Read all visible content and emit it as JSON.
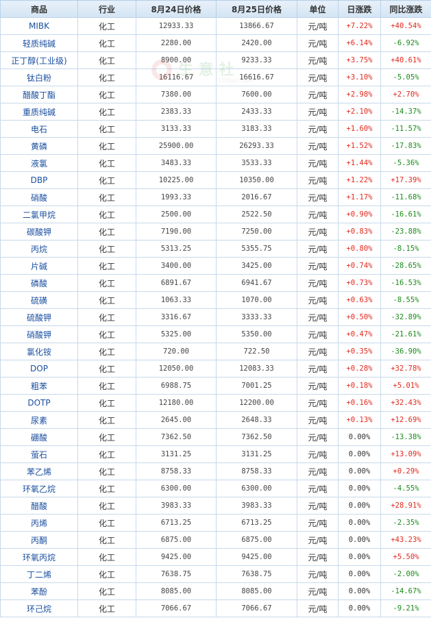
{
  "headers": [
    "商品",
    "行业",
    "8月24日价格",
    "8月25日价格",
    "单位",
    "日涨跌",
    "同比涨跌"
  ],
  "watermark": {
    "logo_text": "生 意 社",
    "url_text": "100ppi.com"
  },
  "colors": {
    "up": "#e0281d",
    "down": "#1a8a1a",
    "name": "#1a4fa0",
    "header_bg": "#dceaf6",
    "border": "#c7d9ea"
  },
  "rows": [
    {
      "name": "MIBK",
      "industry": "化工",
      "p1": "12933.33",
      "p2": "13866.67",
      "unit": "元/吨",
      "day": "+7.22%",
      "yoy": "+40.54%"
    },
    {
      "name": "轻质纯碱",
      "industry": "化工",
      "p1": "2280.00",
      "p2": "2420.00",
      "unit": "元/吨",
      "day": "+6.14%",
      "yoy": "-6.92%"
    },
    {
      "name": "正丁醇(工业级)",
      "industry": "化工",
      "p1": "8900.00",
      "p2": "9233.33",
      "unit": "元/吨",
      "day": "+3.75%",
      "yoy": "+40.61%"
    },
    {
      "name": "钛白粉",
      "industry": "化工",
      "p1": "16116.67",
      "p2": "16616.67",
      "unit": "元/吨",
      "day": "+3.10%",
      "yoy": "-5.05%"
    },
    {
      "name": "醋酸丁酯",
      "industry": "化工",
      "p1": "7380.00",
      "p2": "7600.00",
      "unit": "元/吨",
      "day": "+2.98%",
      "yoy": "+2.70%"
    },
    {
      "name": "重质纯碱",
      "industry": "化工",
      "p1": "2383.33",
      "p2": "2433.33",
      "unit": "元/吨",
      "day": "+2.10%",
      "yoy": "-14.37%"
    },
    {
      "name": "电石",
      "industry": "化工",
      "p1": "3133.33",
      "p2": "3183.33",
      "unit": "元/吨",
      "day": "+1.60%",
      "yoy": "-11.57%"
    },
    {
      "name": "黄磷",
      "industry": "化工",
      "p1": "25900.00",
      "p2": "26293.33",
      "unit": "元/吨",
      "day": "+1.52%",
      "yoy": "-17.83%"
    },
    {
      "name": "液氯",
      "industry": "化工",
      "p1": "3483.33",
      "p2": "3533.33",
      "unit": "元/吨",
      "day": "+1.44%",
      "yoy": "-5.36%"
    },
    {
      "name": "DBP",
      "industry": "化工",
      "p1": "10225.00",
      "p2": "10350.00",
      "unit": "元/吨",
      "day": "+1.22%",
      "yoy": "+17.39%"
    },
    {
      "name": "硝酸",
      "industry": "化工",
      "p1": "1993.33",
      "p2": "2016.67",
      "unit": "元/吨",
      "day": "+1.17%",
      "yoy": "-11.68%"
    },
    {
      "name": "二氯甲烷",
      "industry": "化工",
      "p1": "2500.00",
      "p2": "2522.50",
      "unit": "元/吨",
      "day": "+0.90%",
      "yoy": "-16.61%"
    },
    {
      "name": "碳酸钾",
      "industry": "化工",
      "p1": "7190.00",
      "p2": "7250.00",
      "unit": "元/吨",
      "day": "+0.83%",
      "yoy": "-23.88%"
    },
    {
      "name": "丙烷",
      "industry": "化工",
      "p1": "5313.25",
      "p2": "5355.75",
      "unit": "元/吨",
      "day": "+0.80%",
      "yoy": "-8.15%"
    },
    {
      "name": "片碱",
      "industry": "化工",
      "p1": "3400.00",
      "p2": "3425.00",
      "unit": "元/吨",
      "day": "+0.74%",
      "yoy": "-28.65%"
    },
    {
      "name": "磷酸",
      "industry": "化工",
      "p1": "6891.67",
      "p2": "6941.67",
      "unit": "元/吨",
      "day": "+0.73%",
      "yoy": "-16.53%"
    },
    {
      "name": "硫磺",
      "industry": "化工",
      "p1": "1063.33",
      "p2": "1070.00",
      "unit": "元/吨",
      "day": "+0.63%",
      "yoy": "-8.55%"
    },
    {
      "name": "硫酸钾",
      "industry": "化工",
      "p1": "3316.67",
      "p2": "3333.33",
      "unit": "元/吨",
      "day": "+0.50%",
      "yoy": "-32.89%"
    },
    {
      "name": "硝酸钾",
      "industry": "化工",
      "p1": "5325.00",
      "p2": "5350.00",
      "unit": "元/吨",
      "day": "+0.47%",
      "yoy": "-21.61%"
    },
    {
      "name": "氯化铵",
      "industry": "化工",
      "p1": "720.00",
      "p2": "722.50",
      "unit": "元/吨",
      "day": "+0.35%",
      "yoy": "-36.90%"
    },
    {
      "name": "DOP",
      "industry": "化工",
      "p1": "12050.00",
      "p2": "12083.33",
      "unit": "元/吨",
      "day": "+0.28%",
      "yoy": "+32.78%"
    },
    {
      "name": "粗苯",
      "industry": "化工",
      "p1": "6988.75",
      "p2": "7001.25",
      "unit": "元/吨",
      "day": "+0.18%",
      "yoy": "+5.01%"
    },
    {
      "name": "DOTP",
      "industry": "化工",
      "p1": "12180.00",
      "p2": "12200.00",
      "unit": "元/吨",
      "day": "+0.16%",
      "yoy": "+32.43%"
    },
    {
      "name": "尿素",
      "industry": "化工",
      "p1": "2645.00",
      "p2": "2648.33",
      "unit": "元/吨",
      "day": "+0.13%",
      "yoy": "+12.69%"
    },
    {
      "name": "硼酸",
      "industry": "化工",
      "p1": "7362.50",
      "p2": "7362.50",
      "unit": "元/吨",
      "day": "0.00%",
      "yoy": "-13.38%"
    },
    {
      "name": "萤石",
      "industry": "化工",
      "p1": "3131.25",
      "p2": "3131.25",
      "unit": "元/吨",
      "day": "0.00%",
      "yoy": "+13.09%"
    },
    {
      "name": "苯乙烯",
      "industry": "化工",
      "p1": "8758.33",
      "p2": "8758.33",
      "unit": "元/吨",
      "day": "0.00%",
      "yoy": "+0.29%"
    },
    {
      "name": "环氧乙烷",
      "industry": "化工",
      "p1": "6300.00",
      "p2": "6300.00",
      "unit": "元/吨",
      "day": "0.00%",
      "yoy": "-4.55%"
    },
    {
      "name": "醋酸",
      "industry": "化工",
      "p1": "3983.33",
      "p2": "3983.33",
      "unit": "元/吨",
      "day": "0.00%",
      "yoy": "+28.91%"
    },
    {
      "name": "丙烯",
      "industry": "化工",
      "p1": "6713.25",
      "p2": "6713.25",
      "unit": "元/吨",
      "day": "0.00%",
      "yoy": "-2.35%"
    },
    {
      "name": "丙酮",
      "industry": "化工",
      "p1": "6875.00",
      "p2": "6875.00",
      "unit": "元/吨",
      "day": "0.00%",
      "yoy": "+43.23%"
    },
    {
      "name": "环氧丙烷",
      "industry": "化工",
      "p1": "9425.00",
      "p2": "9425.00",
      "unit": "元/吨",
      "day": "0.00%",
      "yoy": "+5.50%"
    },
    {
      "name": "丁二烯",
      "industry": "化工",
      "p1": "7638.75",
      "p2": "7638.75",
      "unit": "元/吨",
      "day": "0.00%",
      "yoy": "-2.00%"
    },
    {
      "name": "苯酚",
      "industry": "化工",
      "p1": "8085.00",
      "p2": "8085.00",
      "unit": "元/吨",
      "day": "0.00%",
      "yoy": "-14.67%"
    },
    {
      "name": "环己烷",
      "industry": "化工",
      "p1": "7066.67",
      "p2": "7066.67",
      "unit": "元/吨",
      "day": "0.00%",
      "yoy": "-9.21%"
    }
  ]
}
